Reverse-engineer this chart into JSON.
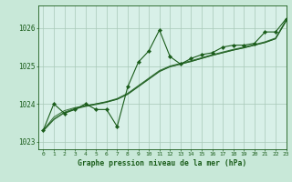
{
  "title": "Graphe pression niveau de la mer (hPa)",
  "bg_color": "#c8e8d8",
  "plot_bg_color": "#d8f0e8",
  "line_color": "#1a5c1a",
  "marker_color": "#1a5c1a",
  "grid_color": "#a8c8b8",
  "xlim": [
    -0.5,
    23
  ],
  "ylim": [
    1022.8,
    1026.6
  ],
  "yticks": [
    1023,
    1024,
    1025,
    1026
  ],
  "xticks": [
    0,
    1,
    2,
    3,
    4,
    5,
    6,
    7,
    8,
    9,
    10,
    11,
    12,
    13,
    14,
    15,
    16,
    17,
    18,
    19,
    20,
    21,
    22,
    23
  ],
  "series_jagged": [
    1023.3,
    1024.0,
    1023.75,
    1023.85,
    1024.0,
    1023.85,
    1023.85,
    1023.4,
    1024.45,
    1025.1,
    1025.4,
    1025.95,
    1025.25,
    1025.05,
    1025.2,
    1025.3,
    1025.35,
    1025.5,
    1025.55,
    1025.55,
    1025.6,
    1025.9,
    1025.9,
    1026.25
  ],
  "series_smooth1": [
    1023.3,
    1023.65,
    1023.82,
    1023.9,
    1023.95,
    1024.0,
    1024.05,
    1024.12,
    1024.25,
    1024.45,
    1024.65,
    1024.85,
    1024.98,
    1025.05,
    1025.12,
    1025.2,
    1025.28,
    1025.35,
    1025.42,
    1025.48,
    1025.55,
    1025.62,
    1025.72,
    1026.2
  ],
  "series_smooth2": [
    1023.3,
    1023.6,
    1023.78,
    1023.88,
    1023.95,
    1024.0,
    1024.06,
    1024.14,
    1024.28,
    1024.48,
    1024.68,
    1024.88,
    1025.0,
    1025.07,
    1025.14,
    1025.22,
    1025.3,
    1025.37,
    1025.44,
    1025.5,
    1025.57,
    1025.64,
    1025.74,
    1026.22
  ],
  "series_smooth3": [
    1023.28,
    1023.58,
    1023.76,
    1023.86,
    1023.93,
    1023.98,
    1024.04,
    1024.12,
    1024.26,
    1024.46,
    1024.66,
    1024.86,
    1024.98,
    1025.05,
    1025.12,
    1025.2,
    1025.28,
    1025.35,
    1025.42,
    1025.48,
    1025.55,
    1025.62,
    1025.72,
    1026.18
  ]
}
